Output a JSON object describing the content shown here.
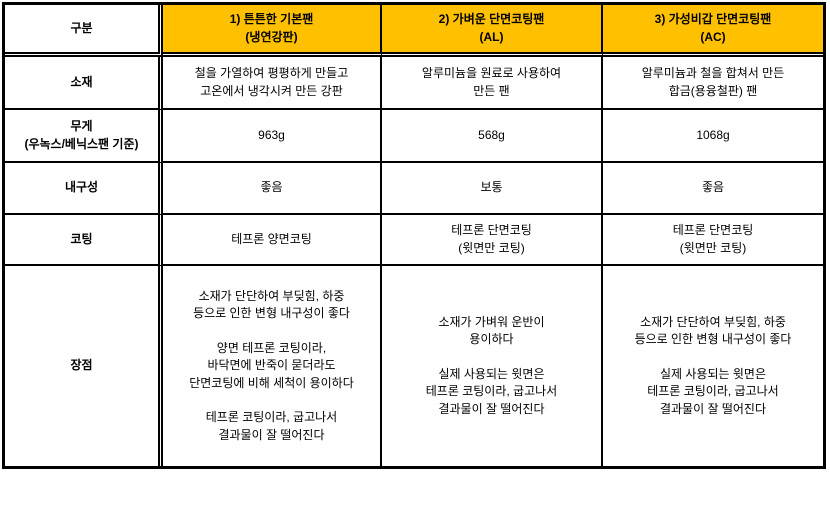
{
  "colors": {
    "header_bg": "#FFC000",
    "border": "#000000",
    "text": "#000000"
  },
  "table": {
    "corner_label": "구분",
    "columns": [
      {
        "header": "1) 튼튼한 기본팬\n(냉연강판)"
      },
      {
        "header": "2) 가벼운 단면코팅팬\n(AL)"
      },
      {
        "header": "3) 가성비갑 단면코팅팬\n(AC)"
      }
    ],
    "rows": [
      {
        "label": "소재",
        "values": [
          "철을 가열하여 평평하게 만들고\n고온에서 냉각시켜 만든 강판",
          "알루미늄을 원료로 사용하여\n만든 팬",
          "알루미늄과 철을 합쳐서 만든\n합금(용융철판) 팬"
        ]
      },
      {
        "label": "무게\n(우녹스/베닉스팬 기준)",
        "values": [
          "963g",
          "568g",
          "1068g"
        ]
      },
      {
        "label": "내구성",
        "values": [
          "좋음",
          "보통",
          "좋음"
        ]
      },
      {
        "label": "코팅",
        "values": [
          "테프론 양면코팅",
          "테프론 단면코팅\n(윗면만 코팅)",
          "테프론 단면코팅\n(윗면만 코팅)"
        ]
      },
      {
        "label": "장점",
        "values": [
          "소재가 단단하여 부딪힘, 하중\n등으로 인한 변형 내구성이 좋다\n\n양면 테프론 코팅이라,\n바닥면에 반죽이 묻더라도\n단면코팅에 비해 세척이 용이하다\n\n테프론 코팅이라, 굽고나서\n결과물이 잘 떨어진다",
          "소재가 가벼워 운반이\n용이하다\n\n실제 사용되는 윗면은\n테프론 코팅이라, 굽고나서\n결과물이 잘 떨어진다",
          "소재가 단단하여 부딪힘, 하중\n등으로 인한 변형 내구성이 좋다\n\n실제 사용되는 윗면은\n테프론 코팅이라, 굽고나서\n결과물이 잘 떨어진다"
        ]
      }
    ]
  }
}
